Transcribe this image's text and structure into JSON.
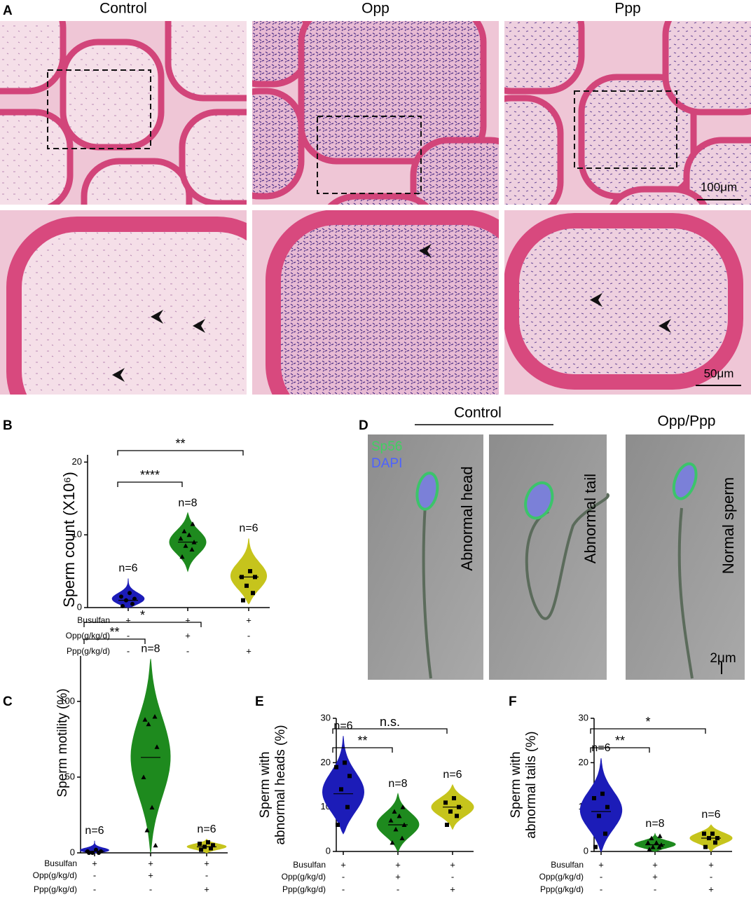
{
  "panel_labels": [
    "A",
    "B",
    "C",
    "D",
    "E",
    "F"
  ],
  "panel_a": {
    "columns": [
      "Control",
      "Opp",
      "Ppp"
    ],
    "scale_bars": [
      "100μm",
      "50μm"
    ]
  },
  "panel_d": {
    "group_labels": [
      "Control",
      "Opp/Ppp"
    ],
    "stains": [
      "Sp56",
      "DAPI"
    ],
    "image_labels": [
      "Abnormal head",
      "Abnormal tail",
      "Normal sperm"
    ],
    "scale_bar": "2μm"
  },
  "chart_data": [
    {
      "type": "violin",
      "ylabel": [
        "Sperm count (X10⁶)"
      ],
      "ylim": [
        0,
        21
      ],
      "yticks": [
        0,
        10,
        20
      ],
      "condition_rows": [
        {
          "label": "Busulfan",
          "values": [
            "+",
            "+",
            "+"
          ]
        },
        {
          "label": "Opp(g/kg/d)",
          "values": [
            "-",
            "+",
            "-"
          ]
        },
        {
          "label": "Ppp(g/kg/d)",
          "values": [
            "-",
            "-",
            "+"
          ]
        }
      ],
      "series": [
        {
          "color": "#1c1cb8",
          "marker": "circle",
          "median": 1,
          "range": [
            0,
            4
          ],
          "points": [
            0.2,
            0.5,
            1,
            1.2,
            1.5,
            2
          ],
          "n_label": "n=6"
        },
        {
          "color": "#1e8a1e",
          "marker": "triangle",
          "median": 9,
          "range": [
            5,
            13
          ],
          "points": [
            7,
            8,
            8.5,
            9,
            9.5,
            10,
            10.5,
            11.5
          ],
          "n_label": "n=8"
        },
        {
          "color": "#c6c41c",
          "marker": "square",
          "median": 4.2,
          "range": [
            0.5,
            9.5
          ],
          "points": [
            1,
            2,
            3,
            4.2,
            4.2,
            5
          ],
          "n_label": "n=6"
        }
      ],
      "brackets": [
        {
          "groups": [
            0,
            1
          ],
          "label": "****"
        },
        {
          "groups": [
            0,
            2
          ],
          "label": "**"
        }
      ]
    },
    {
      "type": "violin",
      "ylabel": [
        "Sperm motility (%)"
      ],
      "ylim": [
        0,
        130
      ],
      "yticks": [
        0,
        50,
        100
      ],
      "condition_rows": [
        {
          "label": "Busulfan",
          "values": [
            "+",
            "+",
            "+"
          ]
        },
        {
          "label": "Opp(g/kg/d)",
          "values": [
            "-",
            "+",
            "-"
          ]
        },
        {
          "label": "Ppp(g/kg/d)",
          "values": [
            "-",
            "-",
            "+"
          ]
        }
      ],
      "series": [
        {
          "color": "#1c1cb8",
          "marker": "circle",
          "median": 1,
          "range": [
            0,
            8
          ],
          "points": [
            0,
            0,
            0,
            1,
            1,
            2
          ],
          "n_label": "n=6"
        },
        {
          "color": "#1e8a1e",
          "marker": "triangle",
          "median": 63,
          "range": [
            0,
            128
          ],
          "points": [
            88,
            90,
            85,
            70,
            50,
            30,
            15,
            5
          ],
          "n_label": "n=8"
        },
        {
          "color": "#c6c41c",
          "marker": "square",
          "median": 4,
          "range": [
            0,
            9
          ],
          "points": [
            2,
            3,
            4,
            5,
            6,
            7
          ],
          "n_label": "n=6"
        }
      ],
      "brackets": [
        {
          "groups": [
            0,
            1
          ],
          "label": "**"
        },
        {
          "groups": [
            0,
            2
          ],
          "label": "*"
        }
      ]
    },
    {
      "type": "violin",
      "ylabel": [
        "Sperm with",
        "abnormal heads (%)"
      ],
      "ylim": [
        0,
        30
      ],
      "yticks": [
        0,
        10,
        20,
        30
      ],
      "condition_rows": [
        {
          "label": "Busulfan",
          "values": [
            "+",
            "+",
            "+"
          ]
        },
        {
          "label": "Opp(g/kg/d)",
          "values": [
            "-",
            "+",
            "-"
          ]
        },
        {
          "label": "Ppp(g/kg/d)",
          "values": [
            "-",
            "-",
            "+"
          ]
        }
      ],
      "series": [
        {
          "color": "#1c1cb8",
          "marker": "square",
          "median": 13,
          "range": [
            4,
            26
          ],
          "points": [
            6,
            10,
            14,
            17,
            19,
            20
          ],
          "n_label": "n=6"
        },
        {
          "color": "#1e8a1e",
          "marker": "triangle",
          "median": 6,
          "range": [
            0,
            13
          ],
          "points": [
            2,
            3,
            5,
            6,
            7,
            8,
            9,
            10
          ],
          "n_label": "n=8"
        },
        {
          "color": "#c6c41c",
          "marker": "square",
          "median": 10,
          "range": [
            5,
            15
          ],
          "points": [
            6,
            8,
            9,
            10,
            11,
            12
          ],
          "n_label": "n=6"
        }
      ],
      "brackets": [
        {
          "groups": [
            0,
            1
          ],
          "label": "**"
        },
        {
          "groups": [
            0,
            2
          ],
          "label": "n.s."
        }
      ]
    },
    {
      "type": "violin",
      "ylabel": [
        "Sperm with",
        "abnormal tails (%)"
      ],
      "ylim": [
        0,
        30
      ],
      "yticks": [
        0,
        10,
        20,
        30
      ],
      "condition_rows": [
        {
          "label": "Busulfan",
          "values": [
            "+",
            "+",
            "+"
          ]
        },
        {
          "label": "Opp(g/kg/d)",
          "values": [
            "-",
            "+",
            "-"
          ]
        },
        {
          "label": "Ppp(g/kg/d)",
          "values": [
            "-",
            "-",
            "+"
          ]
        }
      ],
      "series": [
        {
          "color": "#1c1cb8",
          "marker": "square",
          "median": 9,
          "range": [
            0,
            21
          ],
          "points": [
            1,
            4,
            8,
            10,
            12,
            13
          ],
          "n_label": "n=6"
        },
        {
          "color": "#1e8a1e",
          "marker": "triangle",
          "median": 1.5,
          "range": [
            0,
            4
          ],
          "points": [
            0.5,
            1,
            1,
            1.5,
            2,
            2,
            3,
            3.5
          ],
          "n_label": "n=8"
        },
        {
          "color": "#c6c41c",
          "marker": "square",
          "median": 3,
          "range": [
            0,
            6
          ],
          "points": [
            1,
            2,
            3,
            3,
            4,
            4
          ],
          "n_label": "n=6"
        }
      ],
      "brackets": [
        {
          "groups": [
            0,
            1
          ],
          "label": "**"
        },
        {
          "groups": [
            0,
            2
          ],
          "label": "*"
        }
      ]
    }
  ]
}
